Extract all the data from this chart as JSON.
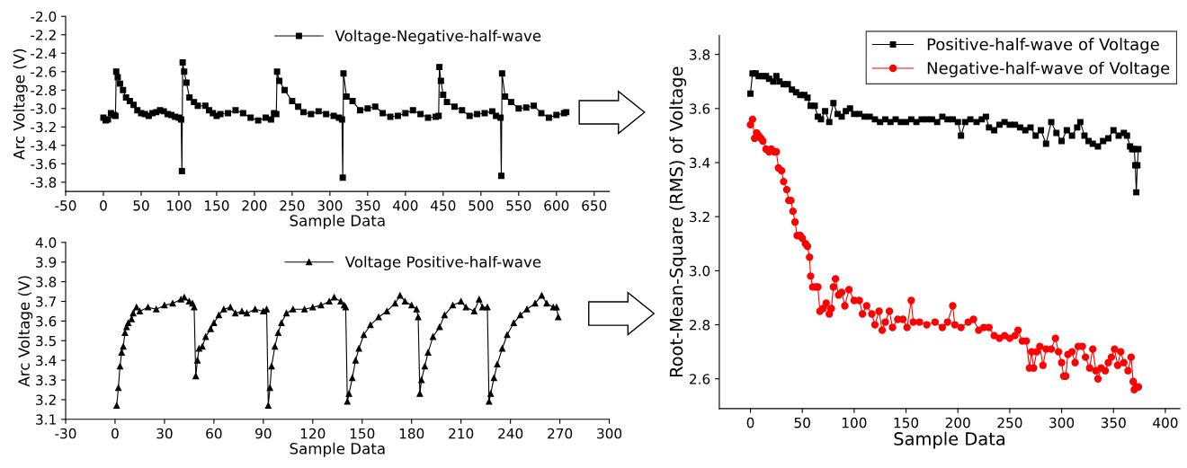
{
  "chart_data": [
    {
      "type": "line",
      "xlabel": "Sample Data",
      "ylabel": "Arc Voltage (V)",
      "xlim": [
        -50,
        670
      ],
      "xticks": [
        -50,
        0,
        50,
        100,
        150,
        200,
        250,
        300,
        350,
        400,
        450,
        500,
        550,
        600,
        650
      ],
      "ylim": [
        -3.9,
        -2.0
      ],
      "yticks": [
        -3.8,
        -3.6,
        -3.4,
        -3.2,
        {
          "value": -3.0,
          "label": "-3.0"
        },
        -2.8,
        -2.6,
        -2.4,
        -2.2,
        {
          "value": -2.0,
          "label": "-2.0"
        }
      ],
      "legend": "top right",
      "grid": false,
      "line_style": "solid",
      "series": [
        {
          "name": "Voltage-Negative-half-wave",
          "color": "#000000",
          "marker": "square",
          "x": [
            0,
            3,
            6,
            10,
            14,
            16,
            17,
            19,
            22,
            26,
            30,
            35,
            40,
            45,
            50,
            55,
            60,
            65,
            70,
            75,
            80,
            85,
            90,
            95,
            100,
            103,
            104,
            105,
            107,
            110,
            114,
            120,
            125,
            135,
            140,
            145,
            150,
            155,
            165,
            175,
            185,
            195,
            205,
            215,
            222,
            226,
            229,
            230,
            233,
            240,
            250,
            258,
            265,
            275,
            285,
            295,
            305,
            312,
            316,
            317,
            318,
            322,
            330,
            340,
            350,
            360,
            370,
            380,
            390,
            400,
            410,
            420,
            430,
            440,
            444,
            445,
            447,
            450,
            455,
            465,
            475,
            485,
            495,
            505,
            515,
            520,
            526,
            527,
            528,
            532,
            540,
            550,
            560,
            570,
            580,
            590,
            600,
            610,
            613
          ],
          "values": [
            -3.1,
            -3.13,
            -3.12,
            -3.05,
            -3.07,
            -3.08,
            -2.6,
            -2.66,
            -2.73,
            -2.8,
            -2.88,
            -2.92,
            -2.96,
            -3.02,
            -3.05,
            -3.06,
            -3.08,
            -3.05,
            -3.04,
            -3.02,
            -3.03,
            -3.06,
            -3.07,
            -3.09,
            -3.1,
            -3.12,
            -3.68,
            -2.5,
            -2.6,
            -2.72,
            -2.88,
            -2.93,
            -2.97,
            -2.97,
            -3.02,
            -3.05,
            -3.08,
            -3.06,
            -3.05,
            -3.02,
            -3.05,
            -3.1,
            -3.13,
            -3.1,
            -3.12,
            -3.05,
            -3.06,
            -2.6,
            -2.7,
            -2.8,
            -2.92,
            -2.98,
            -3.04,
            -3.06,
            -3.03,
            -3.06,
            -3.08,
            -3.1,
            -3.12,
            -3.75,
            -2.62,
            -2.87,
            -2.92,
            -3.02,
            -3.0,
            -2.98,
            -3.05,
            -3.09,
            -3.08,
            -3.05,
            -3.02,
            -3.06,
            -3.1,
            -3.09,
            -3.08,
            -2.55,
            -2.7,
            -2.85,
            -2.93,
            -2.98,
            -3.02,
            -3.08,
            -3.06,
            -3.05,
            -3.03,
            -3.08,
            -3.1,
            -3.73,
            -2.62,
            -2.87,
            -2.93,
            -3.0,
            -2.99,
            -2.97,
            -3.05,
            -3.1,
            -3.07,
            -3.05,
            -3.04
          ]
        }
      ]
    },
    {
      "type": "line",
      "xlabel": "Sample Data",
      "ylabel": "Arc Voltage (V)",
      "xlim": [
        -30,
        300
      ],
      "xticks": [
        -30,
        0,
        30,
        60,
        90,
        120,
        150,
        180,
        210,
        240,
        270,
        300
      ],
      "ylim": [
        3.1,
        4.0
      ],
      "yticks": [
        3.1,
        3.2,
        3.3,
        3.4,
        3.5,
        3.6,
        3.7,
        3.8,
        3.9,
        {
          "value": 4.0,
          "label": "4.0"
        }
      ],
      "legend": "top right",
      "grid": false,
      "line_style": "solid",
      "series": [
        {
          "name": "Voltage Positive-half-wave",
          "color": "#000000",
          "marker": "triangle",
          "x": [
            1,
            2,
            3,
            4,
            5,
            6,
            7,
            8,
            10,
            11,
            13,
            15,
            20,
            25,
            30,
            35,
            40,
            42,
            45,
            47,
            48,
            49,
            50,
            51,
            53,
            55,
            58,
            60,
            63,
            66,
            70,
            73,
            77,
            80,
            85,
            90,
            92,
            93,
            94,
            95,
            97,
            99,
            101,
            104,
            108,
            115,
            120,
            125,
            130,
            133,
            137,
            139,
            140,
            141,
            142,
            144,
            146,
            148,
            151,
            155,
            160,
            165,
            170,
            173,
            176,
            180,
            183,
            184,
            185,
            186,
            188,
            190,
            193,
            197,
            200,
            205,
            210,
            213,
            218,
            221,
            223,
            226,
            227,
            228,
            230,
            232,
            235,
            238,
            242,
            246,
            250,
            255,
            259,
            262,
            266,
            268,
            269
          ],
          "values": [
            3.17,
            3.26,
            3.37,
            3.44,
            3.47,
            3.54,
            3.57,
            3.59,
            3.61,
            3.64,
            3.67,
            3.65,
            3.67,
            3.66,
            3.68,
            3.69,
            3.71,
            3.72,
            3.7,
            3.69,
            3.67,
            3.32,
            3.4,
            3.46,
            3.47,
            3.52,
            3.56,
            3.59,
            3.63,
            3.66,
            3.67,
            3.64,
            3.65,
            3.64,
            3.66,
            3.65,
            3.66,
            3.17,
            3.26,
            3.37,
            3.47,
            3.54,
            3.59,
            3.64,
            3.66,
            3.66,
            3.67,
            3.68,
            3.7,
            3.72,
            3.7,
            3.68,
            3.67,
            3.19,
            3.23,
            3.31,
            3.4,
            3.46,
            3.53,
            3.58,
            3.62,
            3.65,
            3.69,
            3.73,
            3.7,
            3.68,
            3.66,
            3.62,
            3.23,
            3.3,
            3.37,
            3.44,
            3.52,
            3.57,
            3.63,
            3.68,
            3.7,
            3.67,
            3.65,
            3.71,
            3.67,
            3.67,
            3.19,
            3.23,
            3.31,
            3.38,
            3.46,
            3.53,
            3.59,
            3.63,
            3.66,
            3.69,
            3.73,
            3.69,
            3.67,
            3.67,
            3.62
          ]
        }
      ]
    },
    {
      "type": "line",
      "xlabel": "Sample Data",
      "ylabel": "Root-Mean-Square (RMS) of Voltage",
      "xlim": [
        -30,
        414
      ],
      "xticks": [
        0,
        50,
        100,
        150,
        200,
        250,
        300,
        350,
        400
      ],
      "ylim": [
        2.49,
        3.87
      ],
      "yticks": [
        2.6,
        2.8,
        {
          "value": 3.0,
          "label": "3.0"
        },
        3.2,
        3.4,
        3.6,
        3.8
      ],
      "legend": "top right",
      "grid": false,
      "line_style": "solid",
      "series": [
        {
          "name": "Positive-half-wave of Voltage",
          "color": "#000000",
          "marker": "square",
          "x": [
            0,
            2,
            5,
            8,
            12,
            15,
            18,
            22,
            25,
            28,
            32,
            36,
            40,
            44,
            48,
            52,
            55,
            58,
            62,
            65,
            68,
            72,
            76,
            80,
            84,
            88,
            92,
            96,
            100,
            105,
            110,
            115,
            120,
            125,
            130,
            135,
            140,
            145,
            150,
            155,
            160,
            165,
            170,
            175,
            180,
            185,
            190,
            195,
            200,
            203,
            207,
            212,
            218,
            223,
            227,
            230,
            235,
            240,
            245,
            250,
            255,
            260,
            265,
            270,
            275,
            280,
            285,
            290,
            295,
            300,
            305,
            310,
            315,
            318,
            322,
            326,
            330,
            335,
            340,
            345,
            350,
            355,
            360,
            363,
            366,
            368,
            370,
            371,
            372,
            373,
            374
          ],
          "values": [
            3.655,
            3.73,
            3.73,
            3.72,
            3.72,
            3.72,
            3.71,
            3.7,
            3.72,
            3.7,
            3.69,
            3.69,
            3.67,
            3.66,
            3.65,
            3.65,
            3.64,
            3.61,
            3.61,
            3.57,
            3.56,
            3.59,
            3.55,
            3.62,
            3.58,
            3.57,
            3.59,
            3.6,
            3.58,
            3.58,
            3.57,
            3.57,
            3.56,
            3.55,
            3.56,
            3.55,
            3.56,
            3.55,
            3.55,
            3.56,
            3.55,
            3.56,
            3.56,
            3.56,
            3.55,
            3.57,
            3.56,
            3.56,
            3.55,
            3.5,
            3.55,
            3.56,
            3.55,
            3.56,
            3.57,
            3.53,
            3.52,
            3.54,
            3.55,
            3.54,
            3.54,
            3.53,
            3.52,
            3.53,
            3.5,
            3.52,
            3.47,
            3.55,
            3.51,
            3.48,
            3.52,
            3.5,
            3.53,
            3.55,
            3.5,
            3.48,
            3.47,
            3.46,
            3.48,
            3.49,
            3.52,
            3.5,
            3.51,
            3.5,
            3.46,
            3.45,
            3.45,
            3.39,
            3.29,
            3.39,
            3.45
          ]
        },
        {
          "name": "Negative-half-wave of Voltage",
          "color": "#ff0000",
          "marker": "circle",
          "x": [
            0,
            2,
            4,
            6,
            8,
            10,
            12,
            15,
            18,
            20,
            23,
            25,
            27,
            30,
            32,
            35,
            37,
            39,
            41,
            43,
            45,
            48,
            50,
            53,
            55,
            57,
            58,
            60,
            63,
            65,
            67,
            70,
            73,
            76,
            78,
            80,
            82,
            85,
            88,
            91,
            95,
            100,
            105,
            108,
            112,
            117,
            120,
            124,
            127,
            130,
            134,
            137,
            142,
            147,
            151,
            155,
            157,
            163,
            170,
            178,
            185,
            190,
            195,
            197,
            203,
            210,
            215,
            220,
            225,
            230,
            235,
            240,
            245,
            250,
            255,
            258,
            262,
            266,
            269,
            271,
            273,
            276,
            279,
            282,
            285,
            290,
            294,
            297,
            300,
            302,
            304,
            306,
            310,
            313,
            316,
            320,
            323,
            327,
            330,
            333,
            335,
            338,
            342,
            345,
            348,
            351,
            354,
            357,
            360,
            364,
            367,
            369,
            370,
            372,
            374
          ],
          "values": [
            3.54,
            3.56,
            3.49,
            3.51,
            3.5,
            3.49,
            3.48,
            3.45,
            3.44,
            3.45,
            3.44,
            3.44,
            3.38,
            3.37,
            3.33,
            3.3,
            3.26,
            3.26,
            3.22,
            3.18,
            3.13,
            3.13,
            3.12,
            3.1,
            3.09,
            3.05,
            2.98,
            2.94,
            2.94,
            2.94,
            2.85,
            2.86,
            2.88,
            2.84,
            2.86,
            2.94,
            2.97,
            2.91,
            2.92,
            2.87,
            2.93,
            2.89,
            2.89,
            2.84,
            2.87,
            2.84,
            2.8,
            2.85,
            2.78,
            2.81,
            2.85,
            2.79,
            2.82,
            2.82,
            2.79,
            2.89,
            2.81,
            2.81,
            2.8,
            2.81,
            2.79,
            2.81,
            2.87,
            2.8,
            2.79,
            2.81,
            2.82,
            2.78,
            2.79,
            2.79,
            2.76,
            2.75,
            2.76,
            2.75,
            2.76,
            2.78,
            2.74,
            2.74,
            2.64,
            2.7,
            2.64,
            2.7,
            2.72,
            2.65,
            2.71,
            2.71,
            2.75,
            2.7,
            2.66,
            2.61,
            2.61,
            2.69,
            2.7,
            2.66,
            2.72,
            2.72,
            2.68,
            2.64,
            2.71,
            2.63,
            2.6,
            2.64,
            2.63,
            2.66,
            2.68,
            2.71,
            2.65,
            2.7,
            2.66,
            2.63,
            2.68,
            2.59,
            2.56,
            2.57,
            2.57
          ]
        }
      ]
    }
  ]
}
